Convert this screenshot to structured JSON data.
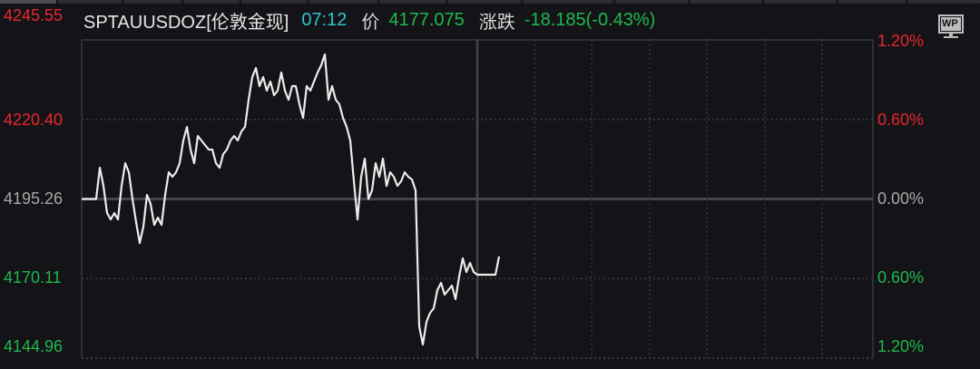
{
  "header": {
    "symbol": "SPTAUUSDOZ[伦敦金现]",
    "time": "07:12",
    "price_label": "价",
    "price": "4177.075",
    "change_label": "涨跌",
    "change": "-18.185(-0.43%)"
  },
  "badge": {
    "label": "WP",
    "icon": "monitor-icon"
  },
  "colors": {
    "up": "#e8262d",
    "down": "#1fb84b",
    "flat": "#a8a8a8",
    "line": "#ececec",
    "time": "#2fc3c8"
  },
  "y_axis_left": [
    "4245.55",
    "4220.40",
    "4195.26",
    "4170.11",
    "4144.96"
  ],
  "y_axis_right": [
    "1.20%",
    "0.60%",
    "0.00%",
    "0.60%",
    "1.20%"
  ],
  "chart_data": {
    "type": "line",
    "ylim": [
      4144.96,
      4245.55
    ],
    "prev_close": 4195.26,
    "grid": true,
    "values": [
      4195.26,
      4195.26,
      4195.26,
      4195.26,
      4195.26,
      4205.14,
      4199.41,
      4190.81,
      4188.8,
      4190.81,
      4188.8,
      4199.41,
      4206.57,
      4203.71,
      4195.26,
      4187.94,
      4181.35,
      4186.51,
      4196.54,
      4193.68,
      4187.08,
      4189.38,
      4187.08,
      4196.54,
      4203.71,
      4202.27,
      4203.71,
      4206.57,
      4213.74,
      4218.04,
      4210.87,
      4206.57,
      4215.17,
      4213.74,
      4212.3,
      4210.87,
      4210.87,
      4206.57,
      4205.14,
      4209.44,
      4210.87,
      4213.74,
      4215.17,
      4213.74,
      4216.6,
      4218.04,
      4226.63,
      4233.8,
      4236.67,
      4230.93,
      4233.8,
      4229.5,
      4232.37,
      4228.07,
      4229.5,
      4235.23,
      4229.5,
      4226.63,
      4230.93,
      4230.93,
      4225.2,
      4220.9,
      4230.93,
      4229.5,
      4232.37,
      4235.23,
      4237.53,
      4240.96,
      4226.63,
      4230.93,
      4226.63,
      4225.2,
      4220.9,
      4218.04,
      4213.74,
      4200.84,
      4188.8,
      4202.27,
      4208.01,
      4195.26,
      4197.97,
      4206.57,
      4202.27,
      4208.01,
      4199.41,
      4203.71,
      4202.27,
      4199.41,
      4200.84,
      4203.71,
      4202.27,
      4201.41,
      4197.97,
      4154.98,
      4149.25,
      4156.42,
      4159.28,
      4160.72,
      4166.45,
      4168.74,
      4165.02,
      4166.45,
      4167.88,
      4163.58,
      4170.75,
      4176.48,
      4172.18,
      4175.05,
      4172.18,
      4171.32,
      4171.32,
      4171.32,
      4171.32,
      4171.32,
      4171.32,
      4177.08
    ]
  }
}
